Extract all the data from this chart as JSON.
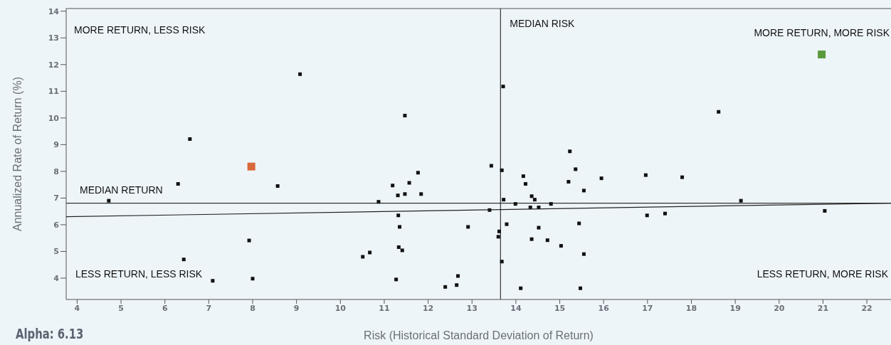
{
  "chart_data": {
    "type": "scatter",
    "xlabel": "Risk (Historical Standard Deviation of Return)",
    "ylabel": "Annualized Rate of Return (%)",
    "xlim": [
      3.75,
      22.55
    ],
    "ylim": [
      3.2,
      14.1
    ],
    "xticks": [
      4,
      5,
      6,
      7,
      8,
      9,
      10,
      11,
      12,
      13,
      14,
      15,
      16,
      17,
      18,
      19,
      20,
      21,
      22
    ],
    "yticks": [
      4,
      5,
      6,
      7,
      8,
      9,
      10,
      11,
      12,
      13,
      14
    ],
    "grid": false,
    "legend": false,
    "marker": "square",
    "series": [
      {
        "color": "#111111",
        "x": [
          4.72,
          6.57,
          6.3,
          8.57,
          7.92,
          6.43,
          7.09,
          8.0,
          9.08,
          13.71,
          11.47,
          15.23,
          13.44,
          13.68,
          11.77,
          15.36,
          14.17,
          14.22,
          15.2,
          11.19,
          11.57,
          11.31,
          11.47,
          11.84,
          10.87,
          13.72,
          14.36,
          14.43,
          13.99,
          14.8,
          14.33,
          14.52,
          13.4,
          11.32,
          11.35,
          12.91,
          13.79,
          14.52,
          15.44,
          13.62,
          13.6,
          14.36,
          14.72,
          15.03,
          11.33,
          11.41,
          10.67,
          10.51,
          13.68,
          12.68,
          11.27,
          12.65,
          12.39,
          14.11,
          15.47,
          18.62,
          15.95,
          16.96,
          17.79,
          15.55,
          19.13,
          16.99,
          17.4,
          21.04,
          15.55
        ],
        "values": [
          6.9,
          9.21,
          7.53,
          7.45,
          5.41,
          4.7,
          3.9,
          3.98,
          11.64,
          11.18,
          10.09,
          8.75,
          8.21,
          8.04,
          7.95,
          8.08,
          7.82,
          7.53,
          7.61,
          7.47,
          7.57,
          7.1,
          7.15,
          7.15,
          6.86,
          6.94,
          7.07,
          6.94,
          6.78,
          6.78,
          6.65,
          6.65,
          6.55,
          6.35,
          5.92,
          5.92,
          6.02,
          5.89,
          6.05,
          5.75,
          5.55,
          5.46,
          5.42,
          5.21,
          5.16,
          5.04,
          4.96,
          4.8,
          4.62,
          4.08,
          3.95,
          3.74,
          3.67,
          3.62,
          3.62,
          10.23,
          7.74,
          7.86,
          7.78,
          7.28,
          6.9,
          6.35,
          6.42,
          6.52,
          4.9
        ]
      },
      {
        "color": "#d9693a",
        "x": [
          7.97
        ],
        "values": [
          8.18
        ]
      },
      {
        "color": "#5a9a3c",
        "x": [
          20.97
        ],
        "values": [
          12.38
        ]
      },
      {
        "type": "line",
        "marker": "none",
        "color": "#222222",
        "x": [
          3.75,
          22.55
        ],
        "values": [
          6.3,
          6.81
        ]
      }
    ],
    "ref_lines": [
      {
        "axis": "y",
        "value": 6.81,
        "label": "MEDIAN RETURN",
        "color": "#333333"
      },
      {
        "axis": "x",
        "value": 13.65,
        "label": "MEDIAN RISK",
        "color": "#333333"
      }
    ],
    "annotations": [
      "MORE RETURN, LESS RISK",
      "MORE RETURN, MORE RISK",
      "LESS RETURN, LESS RISK",
      "LESS RETURN, MORE RISK",
      "Alpha: 6.13"
    ]
  }
}
